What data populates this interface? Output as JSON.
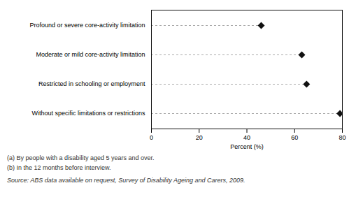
{
  "chart_data": {
    "type": "lollipop",
    "orientation": "horizontal",
    "categories": [
      "Profound or severe core-activity limitation",
      "Moderate or mild core-activity limitation",
      "Restricted in schooling or employment",
      "Without specific limitations or restrictions"
    ],
    "values": [
      46,
      63,
      65,
      79
    ],
    "xlim": [
      0,
      80
    ],
    "xticks": [
      0,
      20,
      40,
      60,
      80
    ],
    "xlabel": "Percent (%)",
    "color": "#111111",
    "marker": "diamond",
    "line_style": "dashed",
    "grid": false,
    "annotations": [
      "(a) By people with a disability aged 5 years and over.",
      "(b) In the 12 months before interview.",
      "Source: ABS data available on request, Survey of Disability Ageing and Carers, 2009."
    ]
  }
}
